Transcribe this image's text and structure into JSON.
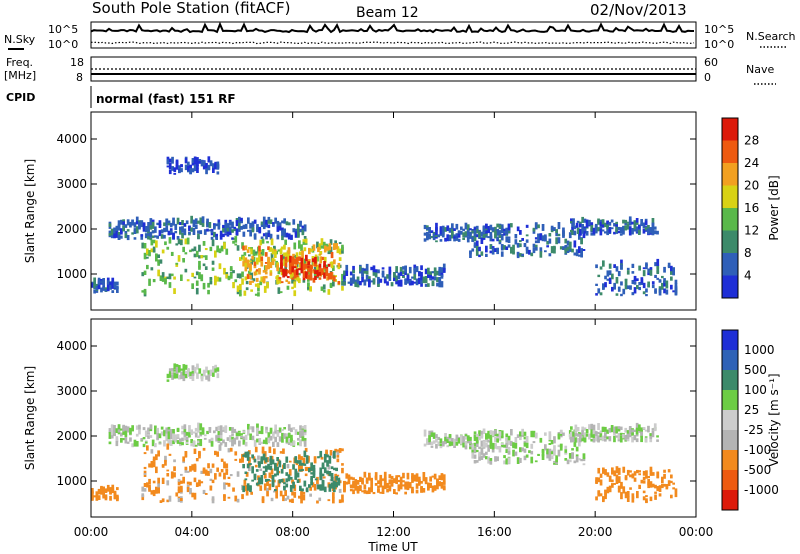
{
  "header": {
    "station": "South Pole Station (fitACF)",
    "beam": "Beam 12",
    "date": "02/Nov/2013"
  },
  "strips": {
    "nsky_label": "N.Sky",
    "nsearch_label": "N.Search",
    "nsky_ticks": [
      "10^5",
      "10^0"
    ],
    "nsearch_ticks": [
      "10^5",
      "10^0"
    ],
    "freq_label": [
      "Freq.",
      "[MHz]"
    ],
    "freq_ticks": [
      "18",
      "8"
    ],
    "nave_label": "Nave",
    "nave_ticks": [
      "60",
      "0"
    ],
    "cpid_label": "CPID",
    "cpid_text": "normal (fast) 151 RF"
  },
  "colors": {
    "power": [
      "#1f2fd6",
      "#2f5fb8",
      "#3c8a6a",
      "#59b84a",
      "#d8d214",
      "#f2a020",
      "#ee5a10",
      "#dd1a0a"
    ],
    "velocity": [
      "#1f2fd6",
      "#2f62b6",
      "#3c8a6a",
      "#6ccc44",
      "#cccccc",
      "#b4b4b4",
      "#f28a1e",
      "#ee5a10",
      "#dd1a0a"
    ]
  },
  "chart_data": [
    {
      "type": "heatmap",
      "panel": "power",
      "ylabel": "Slant Range [km]",
      "yticks": [
        "1000",
        "2000",
        "3000",
        "4000"
      ],
      "ylim": [
        200,
        4600
      ],
      "xlim": [
        0,
        24
      ],
      "colorbar_label": "Power [dB]",
      "colorbar_ticks": [
        "4",
        "8",
        "12",
        "16",
        "20",
        "24",
        "28"
      ],
      "colorbar_range": [
        0,
        32
      ],
      "echo_regions": [
        {
          "t": [
            0.7,
            8.5
          ],
          "r": [
            1750,
            2150
          ],
          "level": 6
        },
        {
          "t": [
            2.0,
            10.0
          ],
          "r": [
            500,
            1700
          ],
          "level": 14
        },
        {
          "t": [
            6.0,
            9.8
          ],
          "r": [
            750,
            1550
          ],
          "level": 22
        },
        {
          "t": [
            7.5,
            9.5
          ],
          "r": [
            850,
            1300
          ],
          "level": 28
        },
        {
          "t": [
            10.0,
            14.0
          ],
          "r": [
            700,
            1100
          ],
          "level": 6
        },
        {
          "t": [
            13.2,
            16.6
          ],
          "r": [
            1700,
            2000
          ],
          "level": 6
        },
        {
          "t": [
            15.0,
            19.5
          ],
          "r": [
            1350,
            2050
          ],
          "level": 6
        },
        {
          "t": [
            19.0,
            22.5
          ],
          "r": [
            1850,
            2150
          ],
          "level": 6
        },
        {
          "t": [
            20.0,
            23.2
          ],
          "r": [
            500,
            1200
          ],
          "level": 6
        },
        {
          "t": [
            3.0,
            5.0
          ],
          "r": [
            3200,
            3500
          ],
          "level": 4
        },
        {
          "t": [
            0.0,
            1.0
          ],
          "r": [
            550,
            800
          ],
          "level": 5
        }
      ]
    },
    {
      "type": "heatmap",
      "panel": "velocity",
      "ylabel": "Slant Range [km]",
      "yticks": [
        "1000",
        "2000",
        "3000",
        "4000"
      ],
      "ylim": [
        200,
        4600
      ],
      "xlim": [
        0,
        24
      ],
      "xlabel": "Time UT",
      "xticks": [
        "00:00",
        "04:00",
        "08:00",
        "12:00",
        "16:00",
        "20:00",
        "00:00"
      ],
      "colorbar_label": "Velocity [m s⁻¹]",
      "colorbar_ticks": [
        "1000",
        "500",
        "100",
        "25",
        "-25",
        "-100",
        "-500",
        "-1000"
      ],
      "echo_regions": [
        {
          "t": [
            0.7,
            8.5
          ],
          "r": [
            1750,
            2150
          ],
          "vel": 0
        },
        {
          "t": [
            2.0,
            10.0
          ],
          "r": [
            500,
            1700
          ],
          "vel": -150
        },
        {
          "t": [
            6.0,
            9.8
          ],
          "r": [
            750,
            1550
          ],
          "vel": 200
        },
        {
          "t": [
            10.0,
            14.0
          ],
          "r": [
            700,
            1100
          ],
          "vel": -300
        },
        {
          "t": [
            13.2,
            16.6
          ],
          "r": [
            1700,
            2000
          ],
          "vel": 0
        },
        {
          "t": [
            15.0,
            19.5
          ],
          "r": [
            1350,
            2050
          ],
          "vel": 0
        },
        {
          "t": [
            19.0,
            22.5
          ],
          "r": [
            1850,
            2150
          ],
          "vel": 0
        },
        {
          "t": [
            20.0,
            23.2
          ],
          "r": [
            500,
            1200
          ],
          "vel": -400
        },
        {
          "t": [
            3.0,
            5.0
          ],
          "r": [
            3200,
            3500
          ],
          "vel": 20
        },
        {
          "t": [
            0.0,
            1.0
          ],
          "r": [
            550,
            800
          ],
          "vel": -300
        }
      ]
    }
  ]
}
